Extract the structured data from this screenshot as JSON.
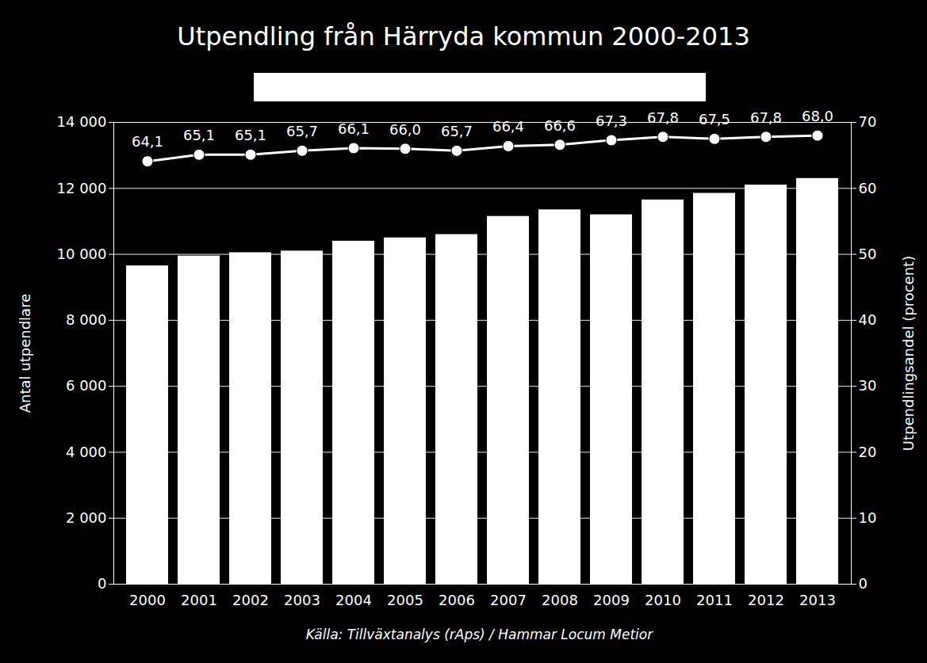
{
  "chart_data": {
    "type": "bar",
    "title": "Utpendling från Härryda kommun 2000-2013",
    "caption": "Källa: Tillväxtanalys (rAps) / Hammar Locum Metior",
    "y_label": "Antal utpendlare",
    "y2_label": "Utpendlingsandel (procent)",
    "categories": [
      "2000",
      "2001",
      "2002",
      "2003",
      "2004",
      "2005",
      "2006",
      "2007",
      "2008",
      "2009",
      "2010",
      "2011",
      "2012",
      "2013"
    ],
    "series": [
      {
        "name": "Antal utpendlare",
        "type": "bar",
        "color": "#ffffff",
        "values": [
          9650,
          9950,
          10050,
          10100,
          10400,
          10500,
          10600,
          11150,
          11350,
          11200,
          11650,
          11850,
          12100,
          12300
        ]
      },
      {
        "name": "Utpendlingsandel (procent)",
        "type": "line",
        "axis": "y2",
        "color": "#ffffff",
        "marker": "circle",
        "values": [
          64.1,
          65.1,
          65.1,
          65.7,
          66.1,
          66.0,
          65.7,
          66.4,
          66.6,
          67.3,
          67.8,
          67.5,
          67.8,
          68.0
        ],
        "value_labels": [
          "64,1",
          "65,1",
          "65,1",
          "65,7",
          "66,1",
          "66,0",
          "65,7",
          "66,4",
          "66,6",
          "67,3",
          "67,8",
          "67,5",
          "67,8",
          "68,0"
        ]
      }
    ],
    "ylim": [
      0,
      14000
    ],
    "yticks": [
      0,
      {
        "value": 2000,
        "label": "2 000"
      },
      {
        "value": 4000,
        "label": "4 000"
      },
      {
        "value": 6000,
        "label": "6 000"
      },
      {
        "value": 8000,
        "label": "8 000"
      },
      {
        "value": 10000,
        "label": "10 000"
      },
      {
        "value": 12000,
        "label": "12 000"
      },
      {
        "value": 14000,
        "label": "14 000"
      }
    ],
    "y2lim": [
      0,
      70
    ],
    "y2ticks": [
      0,
      10,
      20,
      30,
      40,
      50,
      60,
      70
    ],
    "grid": true,
    "data_labels": true
  }
}
